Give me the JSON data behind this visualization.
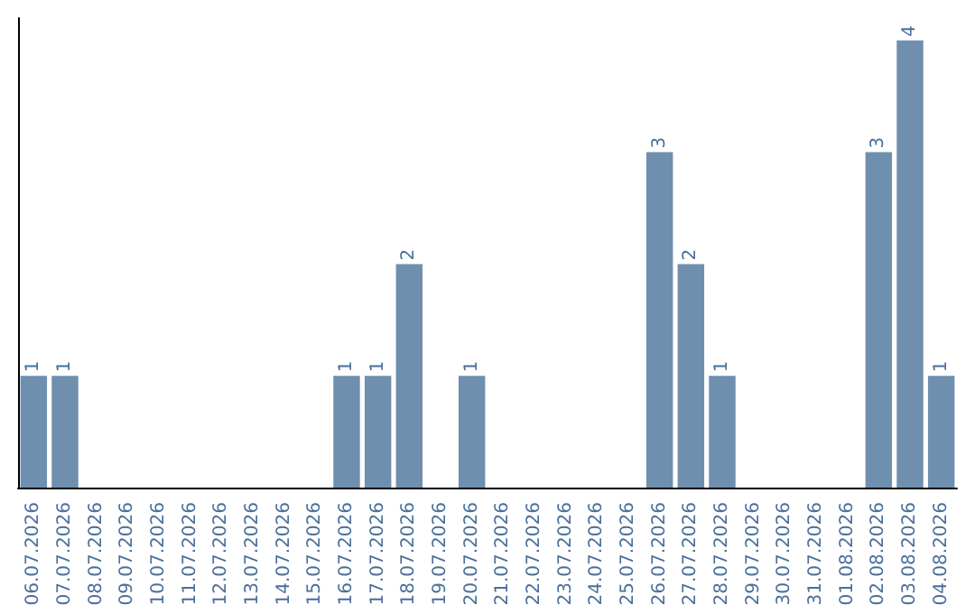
{
  "chart_data": {
    "type": "bar",
    "categories": [
      "06.07.2026",
      "07.07.2026",
      "08.07.2026",
      "09.07.2026",
      "10.07.2026",
      "11.07.2026",
      "12.07.2026",
      "13.07.2026",
      "14.07.2026",
      "15.07.2026",
      "16.07.2026",
      "17.07.2026",
      "18.07.2026",
      "19.07.2026",
      "20.07.2026",
      "21.07.2026",
      "22.07.2026",
      "23.07.2026",
      "24.07.2026",
      "25.07.2026",
      "26.07.2026",
      "27.07.2026",
      "28.07.2026",
      "29.07.2026",
      "30.07.2026",
      "31.07.2026",
      "01.08.2026",
      "02.08.2026",
      "03.08.2026",
      "04.08.2026"
    ],
    "values": [
      1,
      1,
      0,
      0,
      0,
      0,
      0,
      0,
      0,
      0,
      1,
      1,
      2,
      0,
      1,
      0,
      0,
      0,
      0,
      0,
      3,
      2,
      1,
      0,
      0,
      0,
      0,
      3,
      4,
      1
    ],
    "value_labels": [
      "1",
      "1",
      null,
      null,
      null,
      null,
      null,
      null,
      null,
      null,
      "1",
      "1",
      "2",
      null,
      "1",
      null,
      null,
      null,
      null,
      null,
      "3",
      "2",
      "1",
      null,
      null,
      null,
      null,
      "3",
      "4",
      "1"
    ],
    "color": "#6f8fae",
    "ylim": [
      0,
      4.2
    ],
    "grid": false,
    "tick_labels": "x"
  }
}
